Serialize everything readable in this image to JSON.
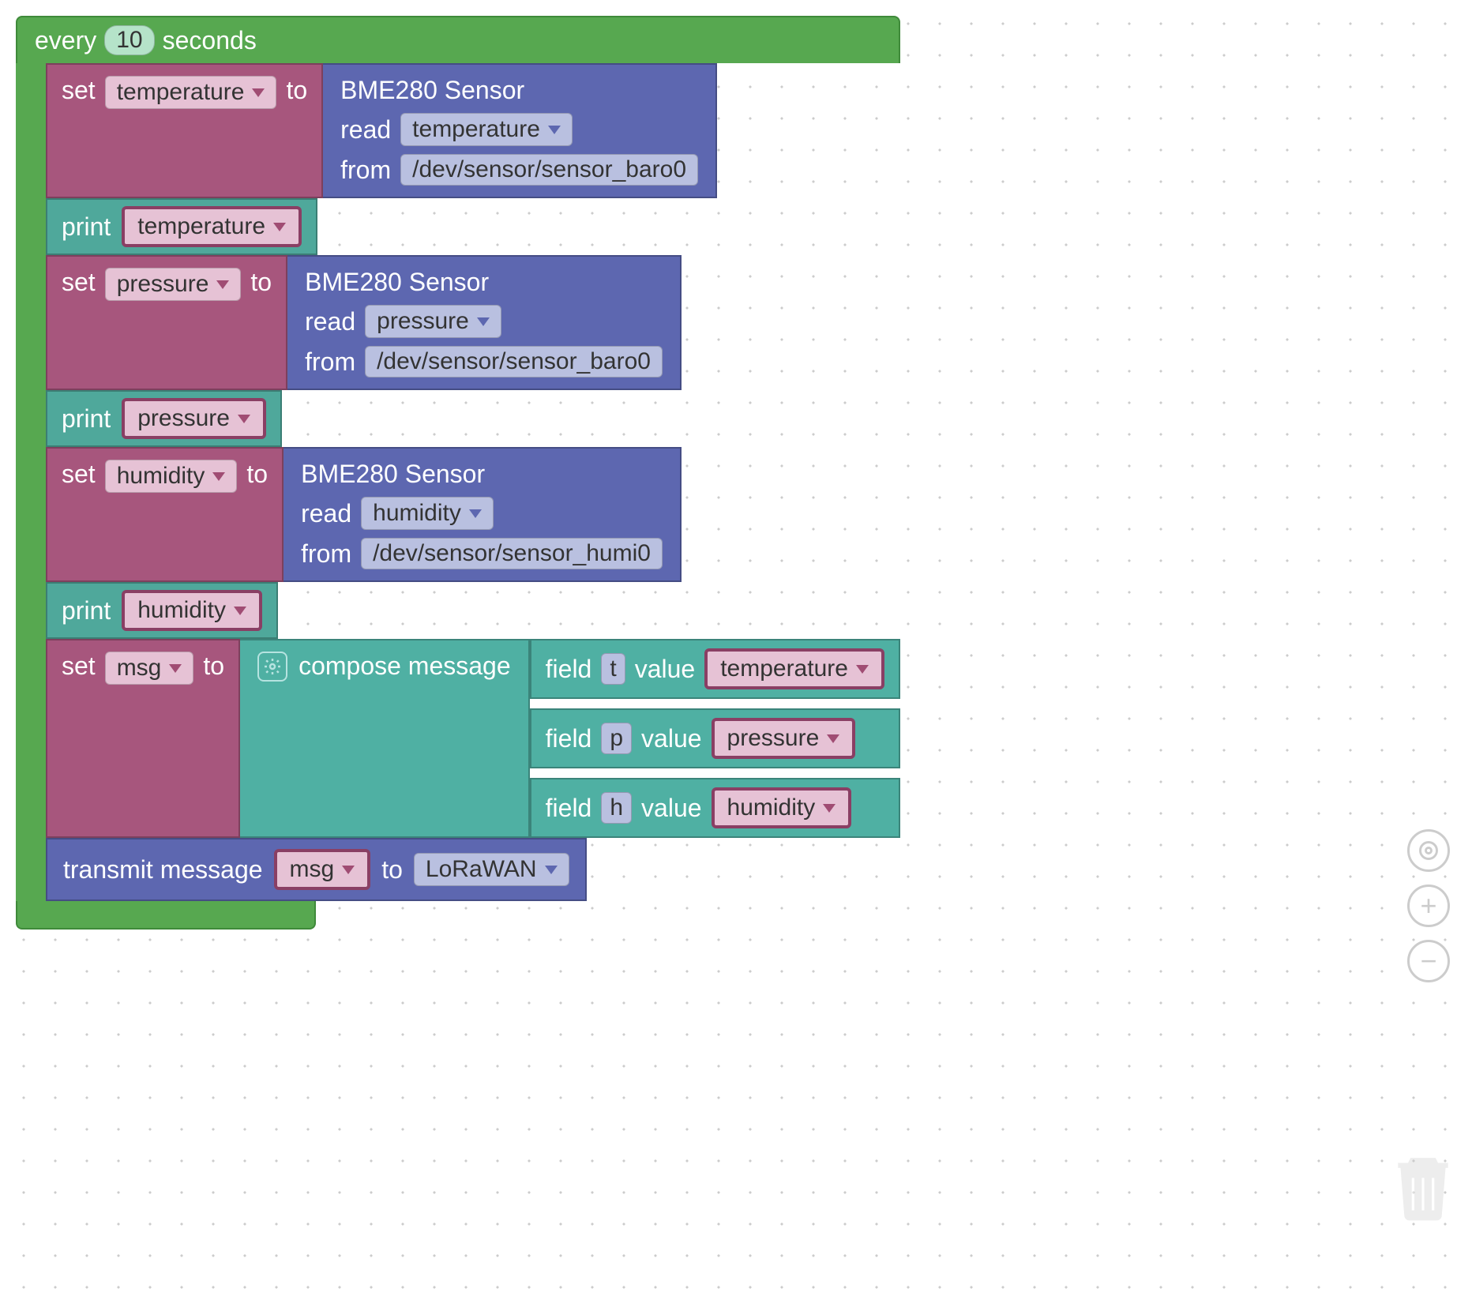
{
  "colors": {
    "green": "#57a850",
    "green_border": "#3f8a3a",
    "maroon": "#a7567d",
    "maroon_dark": "#8a3f64",
    "maroon_pill": "#e6c2d5",
    "teal": "#4fa89b",
    "teal_light": "#4fb0a3",
    "teal_pill": "#b6e3e0",
    "indigo": "#5d67b0",
    "indigo_pill": "#b9c0e0",
    "tri_maroon": "#a04c73"
  },
  "every": {
    "label_before": "every",
    "value": "10",
    "label_after": "seconds"
  },
  "blocks": [
    {
      "type": "set_sensor",
      "var": "temperature",
      "sensor_title": "BME280 Sensor",
      "read_label": "read",
      "read_value": "temperature",
      "from_label": "from",
      "from_path": "/dev/sensor/sensor_baro0"
    },
    {
      "type": "print",
      "var": "temperature"
    },
    {
      "type": "set_sensor",
      "var": "pressure",
      "sensor_title": "BME280 Sensor",
      "read_label": "read",
      "read_value": "pressure",
      "from_label": "from",
      "from_path": "/dev/sensor/sensor_baro0"
    },
    {
      "type": "print",
      "var": "pressure"
    },
    {
      "type": "set_sensor",
      "var": "humidity",
      "sensor_title": "BME280 Sensor",
      "read_label": "read",
      "read_value": "humidity",
      "from_label": "from",
      "from_path": "/dev/sensor/sensor_humi0"
    },
    {
      "type": "print",
      "var": "humidity"
    }
  ],
  "set_label": "set",
  "to_label": "to",
  "print_label": "print",
  "compose": {
    "var": "msg",
    "label": "compose message",
    "fields": [
      {
        "key": "t",
        "value_var": "temperature"
      },
      {
        "key": "p",
        "value_var": "pressure"
      },
      {
        "key": "h",
        "value_var": "humidity"
      }
    ],
    "field_label": "field",
    "value_label": "value"
  },
  "transmit": {
    "label_before": "transmit message",
    "var": "msg",
    "label_to": "to",
    "target": "LoRaWAN"
  }
}
